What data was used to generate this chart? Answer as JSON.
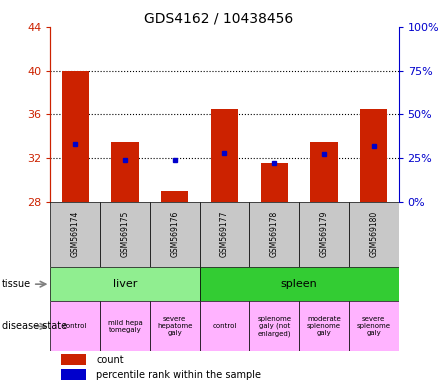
{
  "title": "GDS4162 / 10438456",
  "samples": [
    "GSM569174",
    "GSM569175",
    "GSM569176",
    "GSM569177",
    "GSM569178",
    "GSM569179",
    "GSM569180"
  ],
  "counts": [
    40.0,
    33.5,
    29.0,
    36.5,
    31.5,
    33.5,
    36.5
  ],
  "percentile_ranks_pct": [
    33.0,
    24.0,
    24.0,
    28.0,
    22.0,
    27.0,
    32.0
  ],
  "y_min": 28,
  "y_max": 44,
  "y_ticks_left": [
    28,
    32,
    36,
    40,
    44
  ],
  "y_ticks_right": [
    0,
    25,
    50,
    75,
    100
  ],
  "tissue_groups": [
    {
      "label": "liver",
      "start": 0,
      "end": 3,
      "color": "#90EE90"
    },
    {
      "label": "spleen",
      "start": 3,
      "end": 7,
      "color": "#33CC33"
    }
  ],
  "disease_states": [
    {
      "label": "control",
      "start": 0,
      "end": 1,
      "color": "#FFB3FF"
    },
    {
      "label": "mild hepa\ntomegaly",
      "start": 1,
      "end": 2,
      "color": "#FFB3FF"
    },
    {
      "label": "severe\nhepatome\ngaly",
      "start": 2,
      "end": 3,
      "color": "#FFB3FF"
    },
    {
      "label": "control",
      "start": 3,
      "end": 4,
      "color": "#FFB3FF"
    },
    {
      "label": "splenome\ngaly (not\nenlarged)",
      "start": 4,
      "end": 5,
      "color": "#FFB3FF"
    },
    {
      "label": "moderate\nsplenome\ngaly",
      "start": 5,
      "end": 6,
      "color": "#FFB3FF"
    },
    {
      "label": "severe\nsplenome\ngaly",
      "start": 6,
      "end": 7,
      "color": "#FFB3FF"
    }
  ],
  "bar_color": "#CC2200",
  "dot_color": "#0000CC",
  "bar_width": 0.55,
  "left_axis_color": "#CC2200",
  "right_axis_color": "#0000CC",
  "gray_color": "#C8C8C8",
  "label_tissue": "tissue",
  "label_disease": "disease state",
  "legend_count": "count",
  "legend_pct": "percentile rank within the sample"
}
